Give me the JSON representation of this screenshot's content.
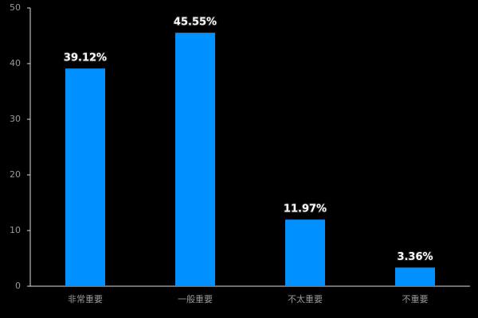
{
  "chart_data": {
    "type": "bar",
    "categories": [
      "非常重要",
      "一般重要",
      "不太重要",
      "不重要"
    ],
    "values": [
      39.12,
      45.55,
      11.97,
      3.36
    ],
    "value_labels": [
      "39.12%",
      "45.55%",
      "11.97%",
      "3.36%"
    ],
    "color": "#0090ff",
    "ylim": [
      0,
      50
    ],
    "yticks": [
      0,
      10,
      20,
      30,
      40,
      50
    ]
  }
}
